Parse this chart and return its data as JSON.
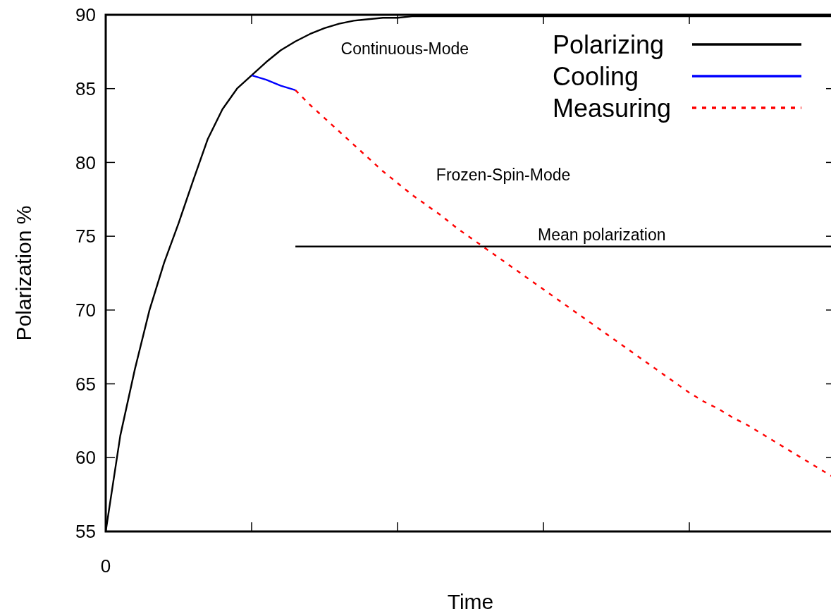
{
  "chart_data": {
    "type": "line",
    "xlabel": "Time",
    "ylabel": "Polarization %",
    "categories": [
      "0",
      null,
      null,
      null,
      null,
      null,
      null,
      null,
      null,
      null,
      null,
      null,
      null,
      null,
      null,
      null,
      null,
      null,
      null,
      null,
      null,
      null,
      null,
      null,
      null,
      null,
      null,
      null,
      null,
      null,
      null,
      null,
      null,
      null,
      null,
      null,
      null,
      null,
      null,
      null,
      null,
      null,
      null,
      null,
      null,
      null,
      null,
      null,
      null,
      null,
      null
    ],
    "ylim": [
      55,
      90
    ],
    "yticks": [
      55,
      60,
      65,
      70,
      75,
      80,
      85,
      90
    ],
    "grid": false,
    "legend": "top right",
    "marker": "none",
    "series": [
      {
        "name": "Polarizing",
        "color": "#000000",
        "line_style": "solid",
        "values": [
          55,
          61.5,
          66.0,
          70.0,
          73.2,
          75.9,
          78.8,
          81.6,
          83.6,
          85.0,
          85.9,
          86.8,
          87.6,
          88.2,
          88.7,
          89.1,
          89.4,
          89.6,
          89.7,
          89.8,
          89.8,
          89.9,
          89.9,
          89.9,
          89.9,
          89.9,
          89.9,
          89.9,
          89.9,
          89.9,
          89.9,
          89.9,
          89.9,
          89.9,
          89.9,
          89.9,
          89.9,
          89.9,
          89.9,
          89.9,
          89.9,
          89.9,
          89.9,
          89.9,
          89.9,
          89.9,
          89.9,
          89.9,
          89.9,
          89.9,
          89.9
        ]
      },
      {
        "name": "Cooling",
        "color": "#0000ff",
        "line_style": "solid",
        "values": [
          null,
          null,
          null,
          null,
          null,
          null,
          null,
          null,
          null,
          null,
          85.9,
          85.6,
          85.2,
          84.9,
          null,
          null,
          null,
          null,
          null,
          null,
          null,
          null,
          null,
          null,
          null,
          null,
          null,
          null,
          null,
          null,
          null,
          null,
          null,
          null,
          null,
          null,
          null,
          null,
          null,
          null,
          null,
          null,
          null,
          null,
          null,
          null,
          null,
          null,
          null,
          null,
          null
        ]
      },
      {
        "name": "Measuring",
        "color": "#ff0000",
        "line_style": "dashed",
        "values": [
          null,
          null,
          null,
          null,
          null,
          null,
          null,
          null,
          null,
          null,
          null,
          null,
          null,
          84.9,
          83.9,
          83.0,
          82.1,
          81.2,
          80.3,
          79.4,
          78.6,
          77.8,
          77.1,
          76.4,
          75.6,
          74.9,
          74.2,
          73.5,
          72.8,
          72.1,
          71.4,
          70.7,
          70.0,
          69.3,
          68.6,
          67.9,
          67.2,
          66.5,
          65.8,
          65.1,
          64.4,
          63.8,
          63.3,
          62.7,
          62.2,
          61.6,
          61.0,
          60.4,
          59.8,
          59.2,
          58.6
        ]
      },
      {
        "color": "#000000",
        "line_style": "solid",
        "values": [
          null,
          null,
          null,
          null,
          null,
          null,
          null,
          null,
          null,
          null,
          null,
          null,
          null,
          74.3,
          74.3,
          74.3,
          74.3,
          74.3,
          74.3,
          74.3,
          74.3,
          74.3,
          74.3,
          74.3,
          74.3,
          74.3,
          74.3,
          74.3,
          74.3,
          74.3,
          74.3,
          74.3,
          74.3,
          74.3,
          74.3,
          74.3,
          74.3,
          74.3,
          74.3,
          74.3,
          74.3,
          74.3,
          74.3,
          74.3,
          74.3,
          74.3,
          74.3,
          74.3,
          74.3,
          74.3,
          74.3
        ]
      }
    ],
    "annotations": [
      "Continuous-Mode",
      "Frozen-Spin-Mode",
      "Mean polarization"
    ]
  }
}
